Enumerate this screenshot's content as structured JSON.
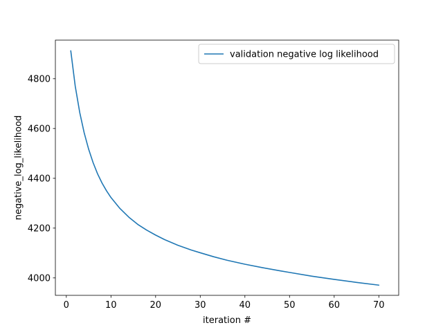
{
  "chart_data": {
    "type": "line",
    "xlabel": "iteration #",
    "ylabel": "negative_log_likelihood",
    "xlim": [
      -2.45,
      74.45
    ],
    "ylim": [
      3930,
      4955
    ],
    "xticks": [
      0,
      10,
      20,
      30,
      40,
      50,
      60,
      70
    ],
    "yticks": [
      4000,
      4200,
      4400,
      4600,
      4800
    ],
    "grid": false,
    "legend_position": "upper right",
    "series": [
      {
        "name": "validation negative log likelihood",
        "color": "#1f77b4",
        "x": [
          1,
          2,
          3,
          4,
          5,
          6,
          7,
          8,
          9,
          10,
          12,
          14,
          16,
          18,
          20,
          22,
          25,
          28,
          30,
          33,
          36,
          40,
          44,
          48,
          50,
          55,
          60,
          65,
          70
        ],
        "y": [
          4912,
          4770,
          4665,
          4583,
          4517,
          4463,
          4418,
          4381,
          4350,
          4323,
          4279,
          4244,
          4215,
          4192,
          4172,
          4154,
          4131,
          4112,
          4101,
          4085,
          4071,
          4055,
          4041,
          4028,
          4022,
          4007,
          3994,
          3982,
          3971
        ]
      }
    ]
  }
}
